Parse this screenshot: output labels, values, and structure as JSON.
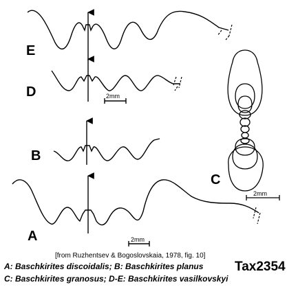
{
  "panels": {
    "A": "A",
    "B": "B",
    "C": "C",
    "D": "D",
    "E": "E"
  },
  "scale_bars": {
    "D": "2mm",
    "C": "2mm",
    "A": "2mm"
  },
  "source": "[from Ruzhentsev & Bogoslovskaia, 1978, fig. 10]",
  "caption": {
    "line1": "A: Baschkirites discoidalis; B: Baschkirites planus",
    "line2": "C: Baschkirites granosus; D-E: Baschkirites vasilkovskyi"
  },
  "tag": "Tax2354"
}
